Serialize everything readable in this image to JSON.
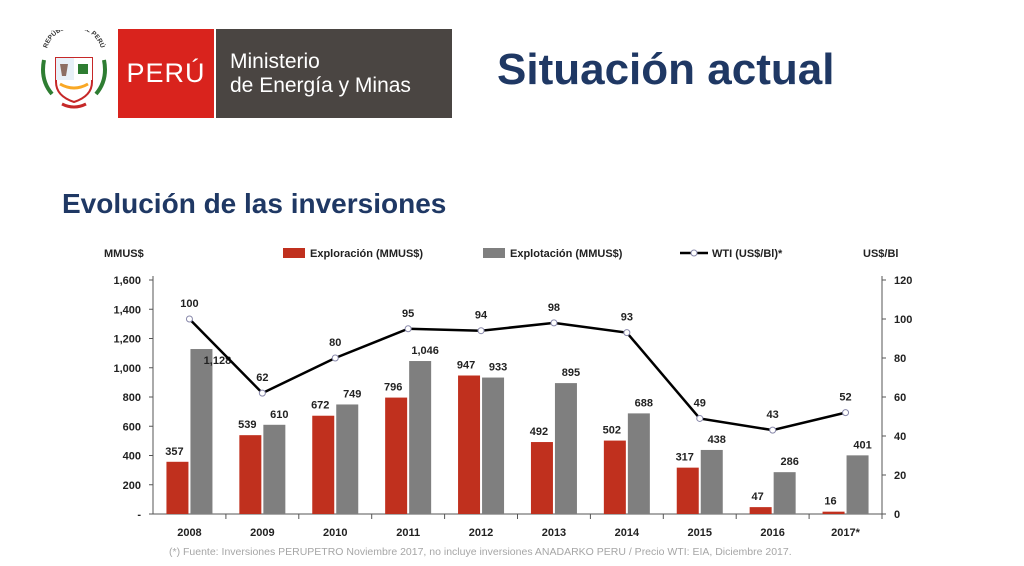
{
  "header": {
    "crest_text": "REPÚBLICA DEL PERÚ",
    "brand_country": "PERÚ",
    "brand_ministry_line1": "Ministerio",
    "brand_ministry_line2": "de Energía y Minas",
    "title": "Situación actual"
  },
  "subtitle": "Evolución de las inversiones",
  "footnote": "(*) Fuente: Inversiones PERUPETRO Noviembre 2017, no incluye inversiones ANADARKO PERU / Precio WTI: EIA, Diciembre 2017.",
  "colors": {
    "exploracion": "#c0301e",
    "explotacion": "#7f7f7f",
    "wti": "#000000",
    "title": "#1f3864"
  },
  "chart_data": {
    "type": "bar",
    "categories": [
      "2008",
      "2009",
      "2010",
      "2011",
      "2012",
      "2013",
      "2014",
      "2015",
      "2016",
      "2017*"
    ],
    "series": [
      {
        "name": "Exploración (MMUS$)",
        "values": [
          357,
          539,
          672,
          796,
          947,
          492,
          502,
          317,
          47,
          16
        ],
        "axis": "left"
      },
      {
        "name": "Explotación (MMUS$)",
        "values": [
          1128,
          610,
          749,
          1046,
          933,
          895,
          688,
          438,
          286,
          401
        ],
        "axis": "left"
      },
      {
        "name": "WTI (US$/Bl)*",
        "type": "line",
        "values": [
          100,
          62,
          80,
          95,
          94,
          98,
          93,
          49,
          43,
          52
        ],
        "axis": "right"
      }
    ],
    "y_left": {
      "unit": "MMUS$",
      "ylim": [
        0,
        1600
      ],
      "ticks": [
        "-",
        "200",
        "400",
        "600",
        "800",
        "1,000",
        "1,200",
        "1,400",
        "1,600"
      ]
    },
    "y_right": {
      "unit": "US$/Bl",
      "ylim": [
        0,
        120
      ],
      "ticks": [
        "0",
        "20",
        "40",
        "60",
        "80",
        "100",
        "120"
      ]
    },
    "data_labels": {
      "exploracion": [
        "357",
        "539",
        "672",
        "796",
        "947",
        "492",
        "502",
        "317",
        "47",
        "16"
      ],
      "explotacion": [
        "1,128",
        "610",
        "749",
        "1,046",
        "933",
        "895",
        "688",
        "438",
        "286",
        "401"
      ],
      "wti": [
        "100",
        "62",
        "80",
        "95",
        "94",
        "98",
        "93",
        "49",
        "43",
        "52"
      ]
    },
    "legend_position": "top",
    "grid": false
  }
}
